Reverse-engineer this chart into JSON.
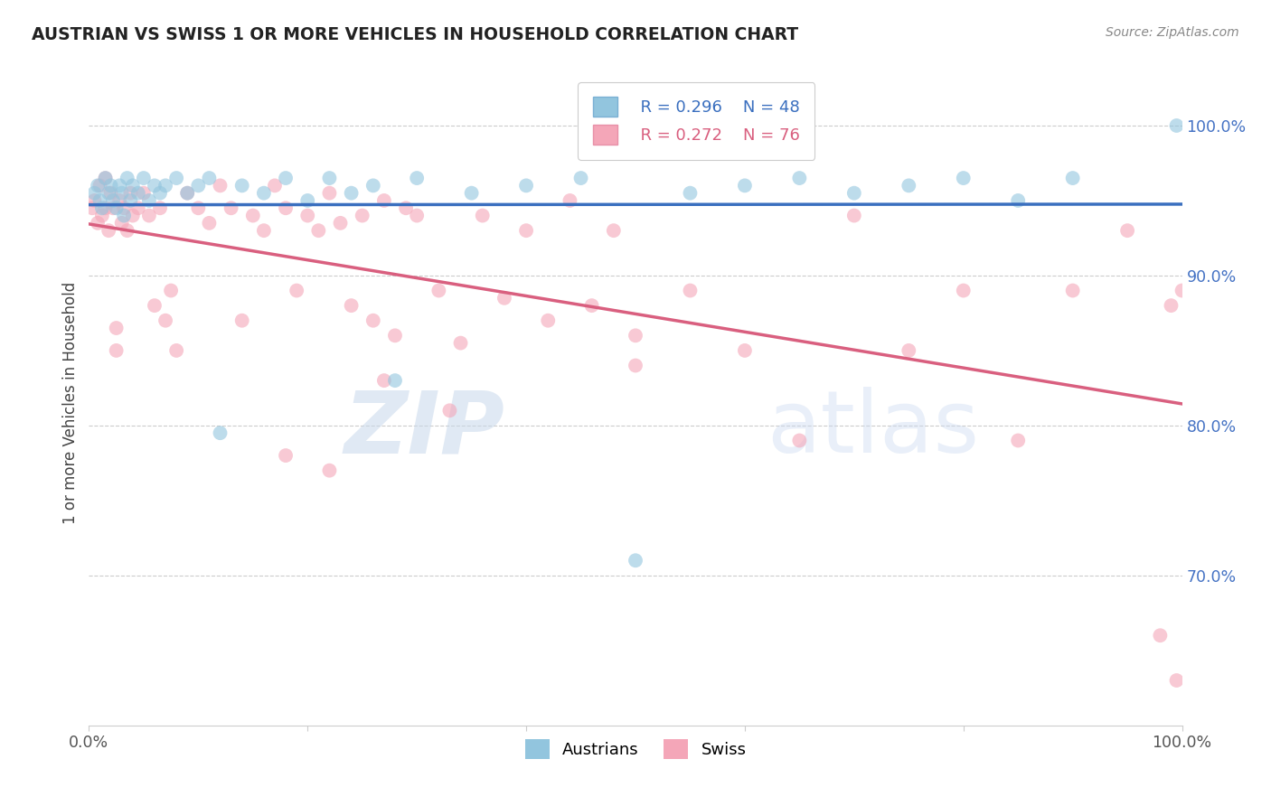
{
  "title": "AUSTRIAN VS SWISS 1 OR MORE VEHICLES IN HOUSEHOLD CORRELATION CHART",
  "source": "Source: ZipAtlas.com",
  "ylabel": "1 or more Vehicles in Household",
  "xlim": [
    0,
    100
  ],
  "ylim": [
    60,
    103
  ],
  "legend_labels": [
    "Austrians",
    "Swiss"
  ],
  "legend_r_blue": "R = 0.296",
  "legend_n_blue": "N = 48",
  "legend_r_pink": "R = 0.272",
  "legend_n_pink": "N = 76",
  "blue_scatter_color": "#92c5de",
  "pink_scatter_color": "#f4a6b8",
  "blue_line_color": "#3a6fbf",
  "pink_line_color": "#d95f7f",
  "aus_x": [
    0.5,
    0.8,
    1.0,
    1.2,
    1.5,
    1.8,
    2.0,
    2.2,
    2.5,
    2.8,
    3.0,
    3.2,
    3.5,
    3.8,
    4.0,
    4.5,
    5.0,
    5.5,
    6.0,
    6.5,
    7.0,
    8.0,
    9.0,
    10.0,
    11.0,
    12.0,
    14.0,
    16.0,
    18.0,
    20.0,
    22.0,
    24.0,
    26.0,
    28.0,
    30.0,
    35.0,
    40.0,
    45.0,
    50.0,
    55.0,
    60.0,
    65.0,
    70.0,
    75.0,
    80.0,
    85.0,
    90.0,
    99.5
  ],
  "aus_y": [
    95.5,
    96.0,
    95.0,
    94.5,
    96.5,
    95.5,
    96.0,
    95.0,
    94.5,
    96.0,
    95.5,
    94.0,
    96.5,
    95.0,
    96.0,
    95.5,
    96.5,
    95.0,
    96.0,
    95.5,
    96.0,
    96.5,
    95.5,
    96.0,
    96.5,
    79.5,
    96.0,
    95.5,
    96.5,
    95.0,
    96.5,
    95.5,
    96.0,
    83.0,
    96.5,
    95.5,
    96.0,
    96.5,
    71.0,
    95.5,
    96.0,
    96.5,
    95.5,
    96.0,
    96.5,
    95.0,
    96.5,
    100.0
  ],
  "swiss_x": [
    0.3,
    0.5,
    0.8,
    1.0,
    1.2,
    1.5,
    1.5,
    1.8,
    2.0,
    2.2,
    2.5,
    2.5,
    2.8,
    3.0,
    3.2,
    3.5,
    3.8,
    4.0,
    4.5,
    5.0,
    5.5,
    6.0,
    6.5,
    7.0,
    7.5,
    8.0,
    9.0,
    10.0,
    11.0,
    12.0,
    13.0,
    14.0,
    15.0,
    16.0,
    17.0,
    18.0,
    19.0,
    20.0,
    21.0,
    22.0,
    23.0,
    24.0,
    25.0,
    26.0,
    27.0,
    28.0,
    29.0,
    30.0,
    32.0,
    34.0,
    36.0,
    38.0,
    40.0,
    42.0,
    44.0,
    46.0,
    48.0,
    50.0,
    55.0,
    60.0,
    65.0,
    70.0,
    75.0,
    80.0,
    85.0,
    90.0,
    95.0,
    98.0,
    99.0,
    99.5,
    100.0,
    27.0,
    33.0,
    18.0,
    22.0,
    50.0
  ],
  "swiss_y": [
    94.5,
    95.0,
    93.5,
    96.0,
    94.0,
    96.5,
    94.5,
    93.0,
    95.5,
    94.5,
    86.5,
    85.0,
    95.0,
    93.5,
    94.5,
    93.0,
    95.5,
    94.0,
    94.5,
    95.5,
    94.0,
    88.0,
    94.5,
    87.0,
    89.0,
    85.0,
    95.5,
    94.5,
    93.5,
    96.0,
    94.5,
    87.0,
    94.0,
    93.0,
    96.0,
    94.5,
    89.0,
    94.0,
    93.0,
    95.5,
    93.5,
    88.0,
    94.0,
    87.0,
    95.0,
    86.0,
    94.5,
    94.0,
    89.0,
    85.5,
    94.0,
    88.5,
    93.0,
    87.0,
    95.0,
    88.0,
    93.0,
    84.0,
    89.0,
    85.0,
    79.0,
    94.0,
    85.0,
    89.0,
    79.0,
    89.0,
    93.0,
    66.0,
    88.0,
    63.0,
    89.0,
    83.0,
    81.0,
    78.0,
    77.0,
    86.0
  ]
}
